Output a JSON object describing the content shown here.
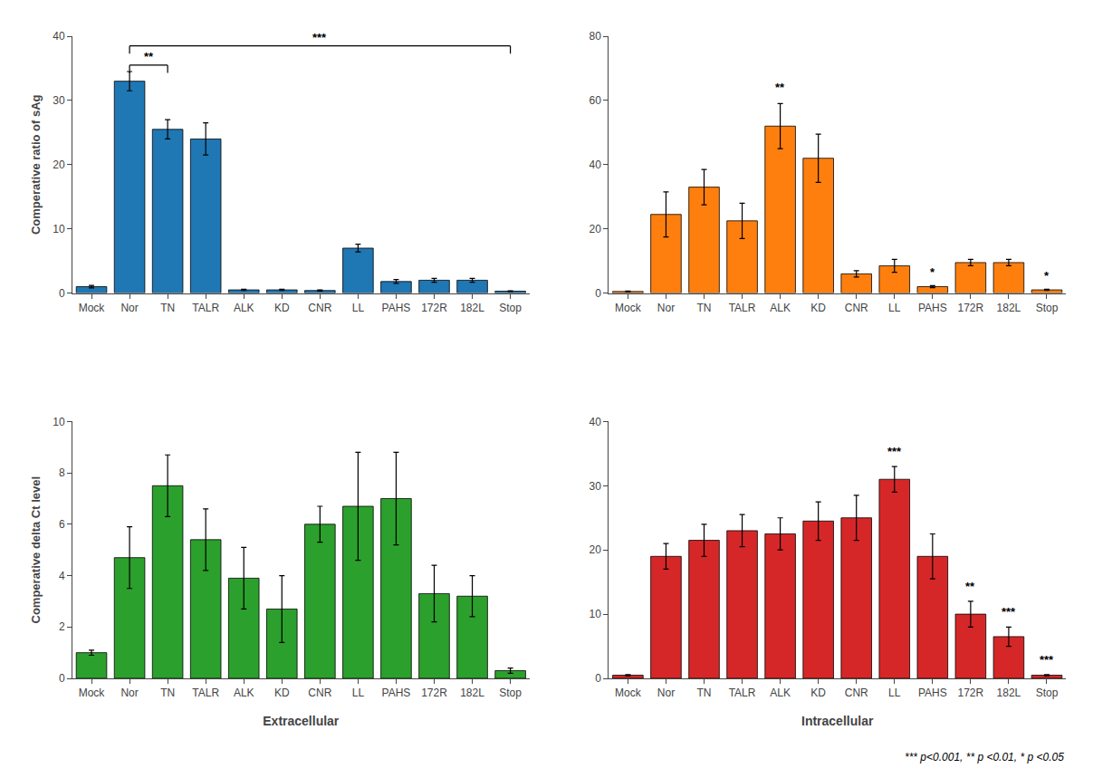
{
  "chart_data": [
    {
      "type": "bar",
      "categories": [
        "Mock",
        "Nor",
        "TN",
        "TALR",
        "ALK",
        "KD",
        "CNR",
        "LL",
        "PAHS",
        "172R",
        "182L",
        "Stop"
      ],
      "values": [
        1.0,
        33.0,
        25.5,
        24.0,
        0.5,
        0.5,
        0.4,
        7.0,
        1.8,
        2.0,
        2.0,
        0.3
      ],
      "errors": [
        0.2,
        1.5,
        1.5,
        2.5,
        0.1,
        0.1,
        0.1,
        0.6,
        0.3,
        0.3,
        0.3,
        0.05
      ],
      "ylabel": "Comperative ratio of sAg",
      "ylim": [
        0,
        40
      ],
      "yticks": [
        0,
        10,
        20,
        30,
        40
      ],
      "grid": false,
      "annotations": [
        {
          "type": "bracket",
          "from": "Nor",
          "to": "TN",
          "y": 35.5,
          "text": "**"
        },
        {
          "type": "bracket",
          "from": "Nor",
          "to": "Stop",
          "y": 38.5,
          "text": "***"
        }
      ]
    },
    {
      "type": "bar",
      "categories": [
        "Mock",
        "Nor",
        "TN",
        "TALR",
        "ALK",
        "KD",
        "CNR",
        "LL",
        "PAHS",
        "172R",
        "182L",
        "Stop"
      ],
      "values": [
        0.5,
        24.5,
        33.0,
        22.5,
        52.0,
        42.0,
        6.0,
        8.5,
        2.0,
        9.5,
        9.5,
        1.0
      ],
      "errors": [
        0.1,
        7.0,
        5.5,
        5.5,
        7.0,
        7.5,
        1.0,
        2.0,
        0.3,
        1.0,
        1.0,
        0.2
      ],
      "ylim": [
        0,
        80
      ],
      "yticks": [
        0,
        20,
        40,
        60,
        80
      ],
      "grid": false,
      "annotations": [
        {
          "category": "ALK",
          "y": 61.5,
          "text": "**"
        },
        {
          "category": "PAHS",
          "y": 3.8,
          "text": "*"
        },
        {
          "category": "Stop",
          "y": 2.7,
          "text": "*"
        }
      ]
    },
    {
      "type": "bar",
      "categories": [
        "Mock",
        "Nor",
        "TN",
        "TALR",
        "ALK",
        "KD",
        "CNR",
        "LL",
        "PAHS",
        "172R",
        "182L",
        "Stop"
      ],
      "values": [
        1.0,
        4.7,
        7.5,
        5.4,
        3.9,
        2.7,
        6.0,
        6.7,
        7.0,
        3.3,
        3.2,
        0.3
      ],
      "errors": [
        0.1,
        1.2,
        1.2,
        1.2,
        1.2,
        1.3,
        0.7,
        2.1,
        1.8,
        1.1,
        0.8,
        0.1
      ],
      "ylabel": "Comperative delta Ct level",
      "xlabel": "Extracellular",
      "ylim": [
        0,
        10
      ],
      "yticks": [
        0,
        2,
        4,
        6,
        8,
        10
      ],
      "grid": false
    },
    {
      "type": "bar",
      "categories": [
        "Mock",
        "Nor",
        "TN",
        "TALR",
        "ALK",
        "KD",
        "CNR",
        "LL",
        "PAHS",
        "172R",
        "182L",
        "Stop"
      ],
      "values": [
        0.5,
        19.0,
        21.5,
        23.0,
        22.5,
        24.5,
        25.0,
        31.0,
        19.0,
        10.0,
        6.5,
        0.5
      ],
      "errors": [
        0.1,
        2.0,
        2.5,
        2.5,
        2.5,
        3.0,
        3.5,
        2.0,
        3.5,
        2.0,
        1.5,
        0.1
      ],
      "xlabel": "Intracellular",
      "ylim": [
        0,
        40
      ],
      "yticks": [
        0,
        10,
        20,
        30,
        40
      ],
      "grid": false,
      "annotations": [
        {
          "category": "LL",
          "y": 34,
          "text": "***"
        },
        {
          "category": "172R",
          "y": 13,
          "text": "**"
        },
        {
          "category": "182L",
          "y": 9,
          "text": "***"
        },
        {
          "category": "Stop",
          "y": 1.6,
          "text": "***"
        }
      ]
    }
  ],
  "footnote": "*** p<0.001, ** p <0.01, * p <0.05"
}
